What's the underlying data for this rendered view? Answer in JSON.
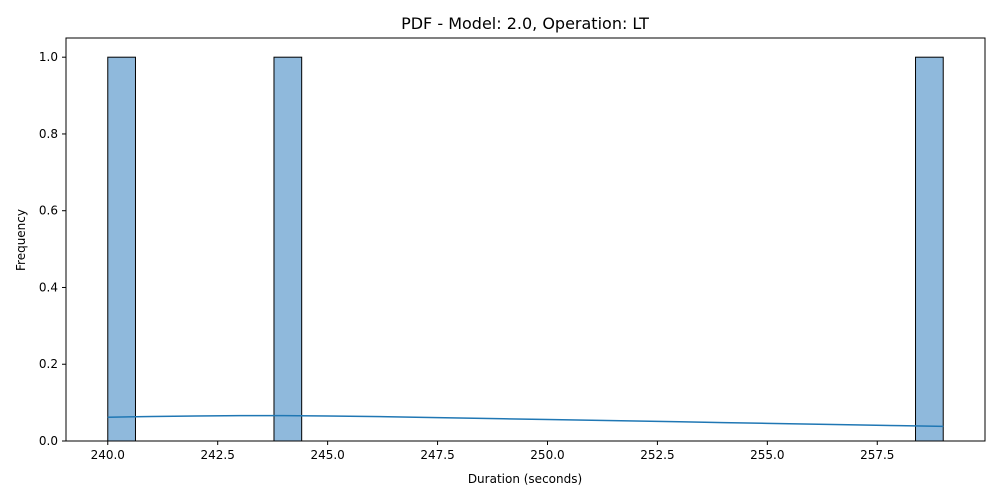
{
  "chart_data": {
    "type": "bar",
    "title": "PDF - Model: 2.0, Operation: LT",
    "xlabel": "Duration (seconds)",
    "ylabel": "Frequency",
    "xlim": [
      239.05,
      259.95
    ],
    "ylim": [
      0.0,
      1.05
    ],
    "xticks": [
      240.0,
      242.5,
      245.0,
      247.5,
      250.0,
      252.5,
      255.0,
      257.5
    ],
    "xtick_labels": [
      "240.0",
      "242.5",
      "245.0",
      "247.5",
      "250.0",
      "252.5",
      "255.0",
      "257.5"
    ],
    "yticks": [
      0.0,
      0.2,
      0.4,
      0.6,
      0.8,
      1.0
    ],
    "ytick_labels": [
      "0.0",
      "0.2",
      "0.4",
      "0.6",
      "0.8",
      "1.0"
    ],
    "bars": [
      {
        "x0": 240.0,
        "x1": 240.63,
        "value": 1
      },
      {
        "x0": 243.78,
        "x1": 244.41,
        "value": 1
      },
      {
        "x0": 258.37,
        "x1": 259.0,
        "value": 1
      }
    ],
    "kde": {
      "x": [
        240.0,
        241.0,
        242.0,
        243.0,
        244.0,
        245.0,
        246.0,
        247.0,
        248.0,
        249.0,
        250.0,
        251.0,
        252.0,
        253.0,
        254.0,
        255.0,
        256.0,
        257.0,
        258.0,
        259.0
      ],
      "y": [
        0.062,
        0.064,
        0.065,
        0.066,
        0.066,
        0.065,
        0.064,
        0.062,
        0.06,
        0.058,
        0.056,
        0.054,
        0.052,
        0.05,
        0.048,
        0.046,
        0.044,
        0.042,
        0.04,
        0.038
      ]
    },
    "colors": {
      "bar_fill": "#8fb9dc",
      "bar_edge": "#000000",
      "kde_line": "#1f77b4"
    },
    "grid": false
  }
}
